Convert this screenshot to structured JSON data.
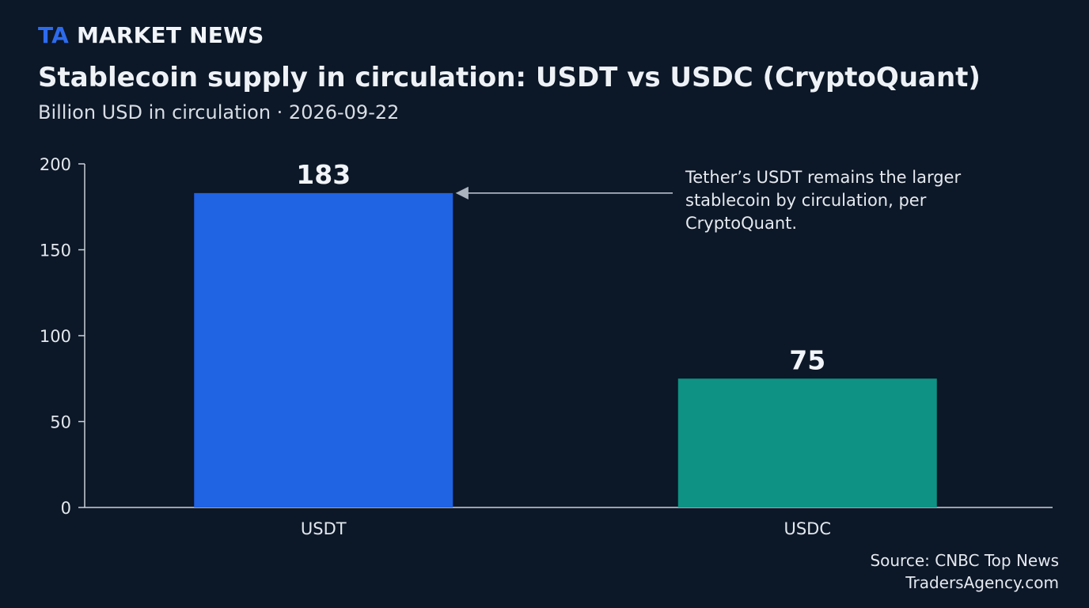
{
  "brand": {
    "prefix": "TA",
    "name": "MARKET NEWS"
  },
  "chart_data": {
    "type": "bar",
    "title": "Stablecoin supply in circulation: USDT vs USDC (CryptoQuant)",
    "subtitle": "Billion USD in circulation · 2026-09-22",
    "categories": [
      "USDT",
      "USDC"
    ],
    "values": [
      183,
      75
    ],
    "value_labels": [
      "183",
      "75"
    ],
    "colors": [
      "#2063e3",
      "#0e9283"
    ],
    "ylim": [
      0,
      200
    ],
    "yticks": [
      0,
      50,
      100,
      150,
      200
    ],
    "xlabel": "",
    "ylabel": "",
    "grid": false,
    "annotation": {
      "lines": [
        "Tether’s USDT remains the larger",
        "stablecoin by circulation, per",
        "CryptoQuant."
      ],
      "target_category": "USDT"
    }
  },
  "footer": {
    "source": "Source: CNBC Top News",
    "site": "TradersAgency.com"
  }
}
